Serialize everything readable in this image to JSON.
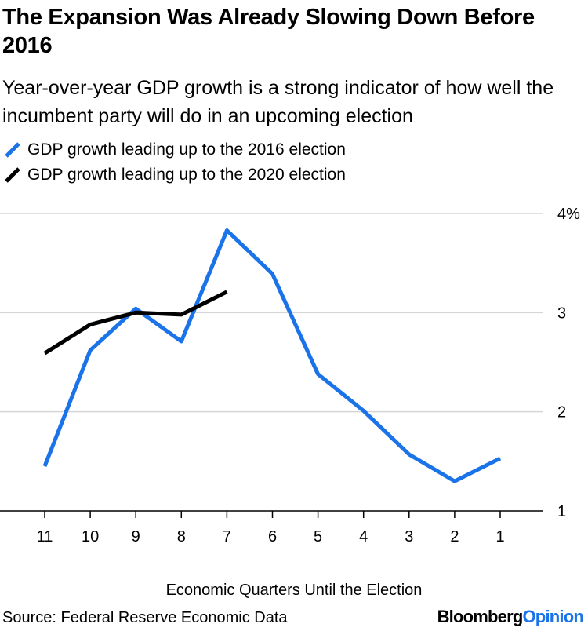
{
  "header": {
    "title": "The Expansion Was Already Slowing Down Before 2016",
    "subtitle": "Year-over-year GDP growth is a strong indicator of how well the incumbent party will do in an upcoming election"
  },
  "legend": [
    {
      "label": "GDP growth leading up to the 2016 election",
      "color": "#1a73e8"
    },
    {
      "label": "GDP growth leading up to the 2020 election",
      "color": "#000000"
    }
  ],
  "footer": {
    "source": "Source: Federal Reserve Economic Data",
    "logo_part1": "Bloomberg",
    "logo_part2": "Opinion"
  },
  "chart_data": {
    "type": "line",
    "title": "The Expansion Was Already Slowing Down Before 2016",
    "xlabel": "Economic Quarters Until the Election",
    "ylabel": "",
    "categories": [
      "11",
      "10",
      "9",
      "8",
      "7",
      "6",
      "5",
      "4",
      "3",
      "2",
      "1"
    ],
    "yticks": [
      "1",
      "2",
      "3",
      "4%"
    ],
    "ylim": [
      1,
      4
    ],
    "y_axis_side": "right",
    "series": [
      {
        "name": "GDP growth leading up to the 2016 election",
        "color": "#1a73e8",
        "values": [
          1.45,
          2.62,
          3.04,
          2.71,
          3.83,
          3.39,
          2.38,
          2.01,
          1.57,
          1.3,
          1.53
        ]
      },
      {
        "name": "GDP growth leading up to the 2020 election",
        "color": "#000000",
        "values": [
          2.59,
          2.88,
          3.0,
          2.98,
          3.21,
          null,
          null,
          null,
          null,
          null,
          null
        ]
      }
    ]
  }
}
